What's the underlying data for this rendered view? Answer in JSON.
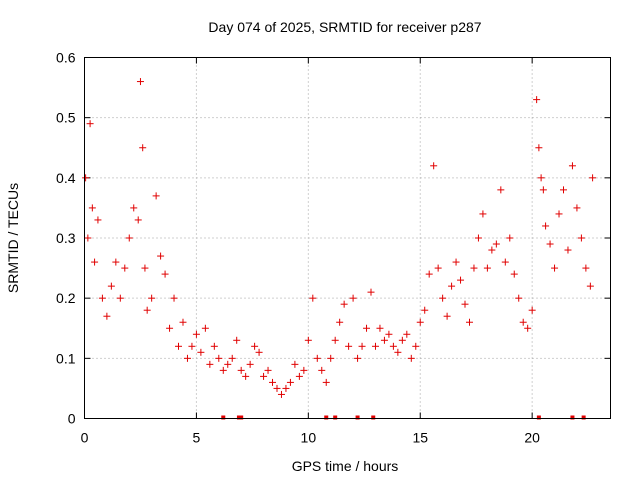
{
  "chart_data": {
    "type": "scatter",
    "title": "Day 074 of 2025, SRMTID for receiver p287",
    "xlabel": "GPS time / hours",
    "ylabel": "SRMTID / TECUs",
    "xlim": [
      0,
      23.5
    ],
    "ylim": [
      0,
      0.6
    ],
    "xticks": [
      0,
      5,
      10,
      15,
      20
    ],
    "xtick_labels": [
      "0",
      "5",
      "10",
      "15",
      "20"
    ],
    "yticks": [
      0,
      0.1,
      0.2,
      0.3,
      0.4,
      0.5,
      0.6
    ],
    "ytick_labels": [
      "0",
      "0.1",
      "0.2",
      "0.3",
      "0.4",
      "0.5",
      "0.6"
    ],
    "grid": true,
    "marker": "plus",
    "color": "#e00000",
    "series": [
      {
        "name": "SRMTID",
        "x": [
          0.05,
          0.15,
          0.25,
          0.35,
          0.45,
          0.6,
          0.8,
          1.0,
          1.2,
          1.4,
          1.6,
          1.8,
          2.0,
          2.2,
          2.4,
          2.5,
          2.6,
          2.7,
          2.8,
          3.0,
          3.2,
          3.4,
          3.6,
          3.8,
          4.0,
          4.2,
          4.4,
          4.6,
          4.8,
          5.0,
          5.2,
          5.4,
          5.6,
          5.8,
          6.0,
          6.2,
          6.4,
          6.6,
          6.8,
          7.0,
          7.2,
          7.4,
          7.6,
          7.8,
          8.0,
          8.2,
          8.4,
          8.6,
          8.8,
          9.0,
          9.2,
          9.4,
          9.6,
          9.8,
          10.0,
          10.2,
          10.4,
          10.6,
          10.8,
          11.0,
          11.2,
          11.4,
          11.6,
          11.8,
          12.0,
          12.2,
          12.4,
          12.6,
          12.8,
          13.0,
          13.2,
          13.4,
          13.6,
          13.8,
          14.0,
          14.2,
          14.4,
          14.6,
          14.8,
          15.0,
          15.2,
          15.4,
          15.6,
          15.8,
          16.0,
          16.2,
          16.4,
          16.6,
          16.8,
          17.0,
          17.2,
          17.4,
          17.6,
          17.8,
          18.0,
          18.2,
          18.4,
          18.6,
          18.8,
          19.0,
          19.2,
          19.4,
          19.6,
          19.8,
          20.0,
          20.2,
          20.3,
          20.4,
          20.5,
          20.6,
          20.8,
          21.0,
          21.2,
          21.4,
          21.6,
          21.8,
          22.0,
          22.2,
          22.4,
          22.6,
          22.7
        ],
        "y": [
          0.4,
          0.3,
          0.49,
          0.35,
          0.26,
          0.33,
          0.2,
          0.17,
          0.22,
          0.26,
          0.2,
          0.25,
          0.3,
          0.35,
          0.33,
          0.56,
          0.45,
          0.25,
          0.18,
          0.2,
          0.37,
          0.27,
          0.24,
          0.15,
          0.2,
          0.12,
          0.16,
          0.1,
          0.12,
          0.14,
          0.11,
          0.15,
          0.09,
          0.12,
          0.1,
          0.08,
          0.09,
          0.1,
          0.13,
          0.08,
          0.07,
          0.09,
          0.12,
          0.11,
          0.07,
          0.08,
          0.06,
          0.05,
          0.04,
          0.05,
          0.06,
          0.09,
          0.07,
          0.08,
          0.13,
          0.2,
          0.1,
          0.08,
          0.06,
          0.1,
          0.13,
          0.16,
          0.19,
          0.12,
          0.2,
          0.1,
          0.12,
          0.15,
          0.21,
          0.12,
          0.15,
          0.13,
          0.14,
          0.12,
          0.11,
          0.13,
          0.14,
          0.1,
          0.12,
          0.16,
          0.18,
          0.24,
          0.42,
          0.25,
          0.2,
          0.17,
          0.22,
          0.26,
          0.23,
          0.19,
          0.16,
          0.25,
          0.3,
          0.34,
          0.25,
          0.28,
          0.29,
          0.38,
          0.26,
          0.3,
          0.24,
          0.2,
          0.16,
          0.15,
          0.18,
          0.53,
          0.45,
          0.4,
          0.38,
          0.32,
          0.29,
          0.25,
          0.34,
          0.38,
          0.28,
          0.42,
          0.35,
          0.3,
          0.25,
          0.22,
          0.4
        ],
        "zero_flags_x": [
          6.2,
          6.9,
          7.0,
          10.8,
          11.2,
          12.2,
          12.9,
          20.3,
          21.8,
          22.3
        ]
      }
    ]
  }
}
